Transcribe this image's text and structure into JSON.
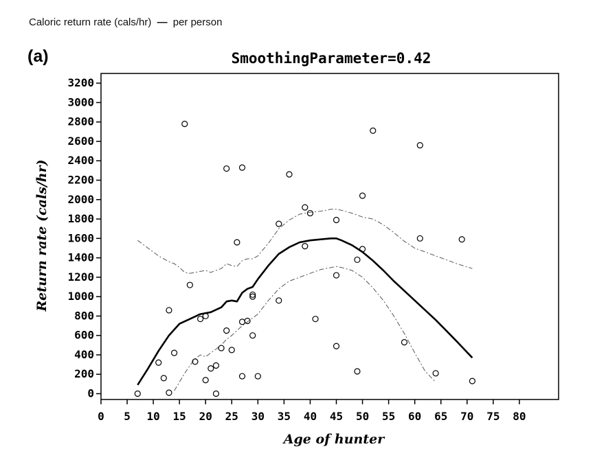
{
  "caption": {
    "text": "Caloric return rate (cals/hr)",
    "dash": "—",
    "suffix": "per person"
  },
  "chart_data": {
    "type": "scatter",
    "panel_label": "(a)",
    "title": "SmoothingParameter=0.42",
    "xlabel": "Age of hunter",
    "ylabel": "Return rate (cals/hr)",
    "xlim": [
      0,
      80
    ],
    "ylim": [
      0,
      3200
    ],
    "xticks": [
      0,
      5,
      10,
      15,
      20,
      25,
      30,
      35,
      40,
      45,
      50,
      55,
      60,
      65,
      70,
      75,
      80
    ],
    "yticks": [
      0,
      200,
      400,
      600,
      800,
      1000,
      1200,
      1400,
      1600,
      1800,
      2000,
      2200,
      2400,
      2600,
      2800,
      3000,
      3200
    ],
    "grid": false,
    "points": [
      {
        "x": 7,
        "y": 0
      },
      {
        "x": 11,
        "y": 320
      },
      {
        "x": 12,
        "y": 160
      },
      {
        "x": 13,
        "y": 10
      },
      {
        "x": 13,
        "y": 860
      },
      {
        "x": 14,
        "y": 420
      },
      {
        "x": 16,
        "y": 2780
      },
      {
        "x": 17,
        "y": 1120
      },
      {
        "x": 18,
        "y": 330
      },
      {
        "x": 19,
        "y": 770
      },
      {
        "x": 20,
        "y": 800
      },
      {
        "x": 20,
        "y": 140
      },
      {
        "x": 21,
        "y": 260
      },
      {
        "x": 22,
        "y": 290
      },
      {
        "x": 22,
        "y": 0
      },
      {
        "x": 23,
        "y": 470
      },
      {
        "x": 24,
        "y": 650
      },
      {
        "x": 24,
        "y": 2320
      },
      {
        "x": 25,
        "y": 450
      },
      {
        "x": 26,
        "y": 1560
      },
      {
        "x": 27,
        "y": 2330
      },
      {
        "x": 27,
        "y": 740
      },
      {
        "x": 27,
        "y": 180
      },
      {
        "x": 28,
        "y": 750
      },
      {
        "x": 29,
        "y": 1020
      },
      {
        "x": 29,
        "y": 1000
      },
      {
        "x": 29,
        "y": 600
      },
      {
        "x": 30,
        "y": 180
      },
      {
        "x": 34,
        "y": 1750
      },
      {
        "x": 34,
        "y": 960
      },
      {
        "x": 36,
        "y": 2260
      },
      {
        "x": 39,
        "y": 1920
      },
      {
        "x": 39,
        "y": 1520
      },
      {
        "x": 40,
        "y": 1860
      },
      {
        "x": 41,
        "y": 770
      },
      {
        "x": 45,
        "y": 1790
      },
      {
        "x": 45,
        "y": 1220
      },
      {
        "x": 45,
        "y": 490
      },
      {
        "x": 49,
        "y": 1380
      },
      {
        "x": 49,
        "y": 230
      },
      {
        "x": 50,
        "y": 2040
      },
      {
        "x": 50,
        "y": 1490
      },
      {
        "x": 52,
        "y": 2710
      },
      {
        "x": 58,
        "y": 530
      },
      {
        "x": 61,
        "y": 2560
      },
      {
        "x": 61,
        "y": 1600
      },
      {
        "x": 64,
        "y": 210
      },
      {
        "x": 69,
        "y": 1590
      },
      {
        "x": 71,
        "y": 130
      }
    ],
    "fit": {
      "x": [
        7,
        9,
        11,
        13,
        15,
        17,
        19,
        21,
        23,
        24,
        25,
        26,
        27,
        28,
        29,
        30,
        32,
        34,
        36,
        38,
        40,
        42,
        44,
        45,
        46,
        48,
        50,
        52,
        54,
        56,
        58,
        60,
        62,
        64,
        66,
        68,
        71
      ],
      "y": [
        90,
        260,
        440,
        600,
        720,
        770,
        820,
        840,
        890,
        950,
        960,
        950,
        1040,
        1080,
        1100,
        1180,
        1320,
        1440,
        1510,
        1560,
        1580,
        1590,
        1600,
        1600,
        1580,
        1530,
        1460,
        1370,
        1270,
        1160,
        1060,
        960,
        860,
        760,
        650,
        540,
        370
      ]
    },
    "upper_band": {
      "x": [
        7,
        9,
        11,
        13,
        14,
        15,
        16,
        17,
        18,
        20,
        21,
        22,
        23,
        24,
        25,
        26,
        27,
        28,
        29,
        30,
        32,
        34,
        36,
        38,
        40,
        42,
        44,
        45,
        46,
        48,
        50,
        52,
        54,
        56,
        58,
        60,
        62,
        64,
        66,
        68,
        71
      ],
      "y": [
        1580,
        1500,
        1420,
        1360,
        1340,
        1300,
        1250,
        1240,
        1250,
        1270,
        1250,
        1270,
        1290,
        1340,
        1320,
        1310,
        1370,
        1390,
        1390,
        1420,
        1550,
        1700,
        1790,
        1850,
        1870,
        1880,
        1900,
        1900,
        1890,
        1860,
        1820,
        1800,
        1740,
        1660,
        1570,
        1500,
        1460,
        1420,
        1380,
        1340,
        1290
      ]
    },
    "lower_band": {
      "x": [
        14,
        15,
        16,
        17,
        18,
        19,
        20,
        21,
        22,
        23,
        24,
        25,
        26,
        27,
        28,
        30,
        32,
        34,
        36,
        38,
        40,
        42,
        44,
        45,
        46,
        48,
        50,
        52,
        54,
        56,
        58,
        60,
        62,
        64
      ],
      "y": [
        30,
        120,
        210,
        290,
        360,
        400,
        380,
        420,
        460,
        500,
        560,
        600,
        650,
        700,
        740,
        820,
        960,
        1080,
        1160,
        1200,
        1240,
        1280,
        1300,
        1310,
        1300,
        1270,
        1200,
        1090,
        960,
        800,
        620,
        420,
        230,
        120
      ]
    }
  }
}
